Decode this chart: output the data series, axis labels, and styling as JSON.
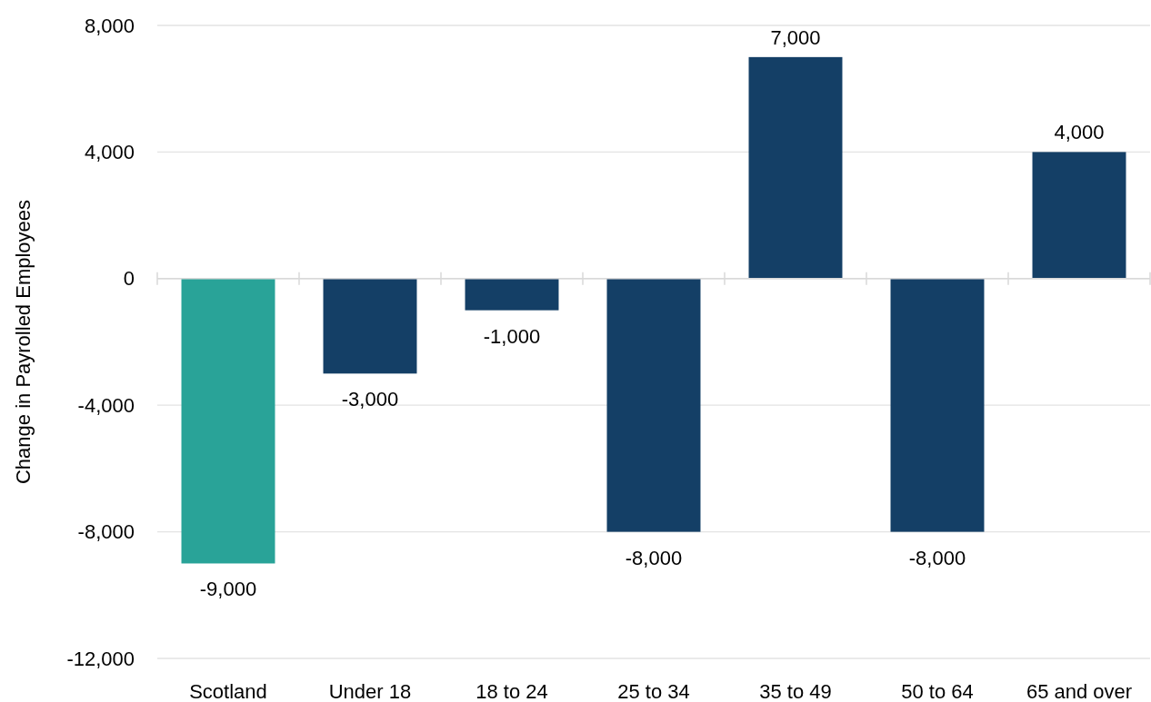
{
  "chart_data": {
    "type": "bar",
    "ylabel": "Change in Payrolled Employees",
    "categories": [
      "Scotland",
      "Under 18",
      "18 to 24",
      "25 to 34",
      "35 to 49",
      "50 to 64",
      "65 and over"
    ],
    "values": [
      -9000,
      -3000,
      -1000,
      -8000,
      7000,
      -8000,
      4000
    ],
    "colors": [
      "#29a398",
      "#143f66",
      "#143f66",
      "#143f66",
      "#143f66",
      "#143f66",
      "#143f66"
    ],
    "value_labels": [
      "-9,000",
      "-3,000",
      "-1,000",
      "-8,000",
      "7,000",
      "-8,000",
      "4,000"
    ],
    "ylim": [
      -12000,
      8000
    ],
    "yticks": [
      {
        "value": -12000,
        "label": "-12,000"
      },
      {
        "value": -8000,
        "label": "-8,000"
      },
      {
        "value": -4000,
        "label": "-4,000"
      },
      0,
      {
        "value": 4000,
        "label": "4,000"
      },
      {
        "value": 8000,
        "label": "8,000"
      }
    ],
    "grid": "y"
  }
}
